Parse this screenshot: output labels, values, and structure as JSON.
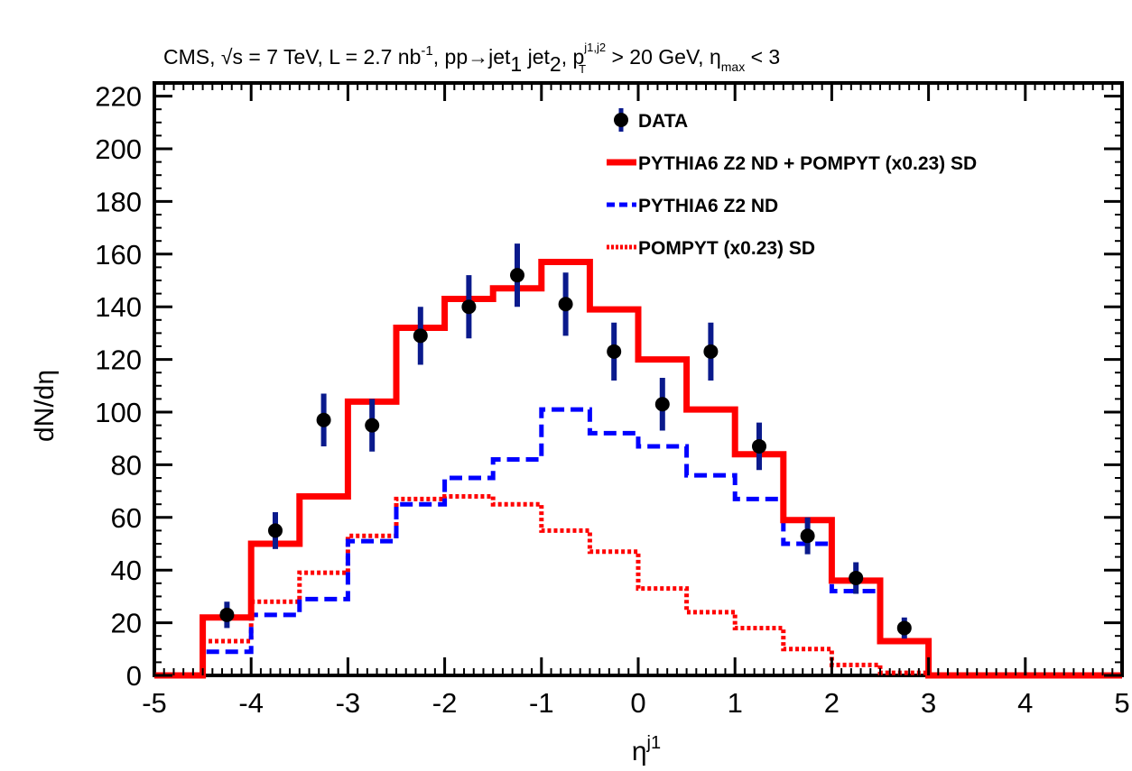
{
  "chart_data": {
    "type": "line",
    "title_parts": {
      "t1": "CMS,  ",
      "sqrt": "√s",
      "t2": " = 7 TeV,  L = 2.7 nb",
      "t2_sup": "-1",
      "t3": ",  pp→jet",
      "sub1": "1",
      "t4": " jet",
      "sub2": "2",
      "t5": ",  p",
      "pt_sup": "j1,j2",
      "pt_sub": "T",
      "t6": " > 20 GeV,  η",
      "eta_sub": "max",
      "t7": " < 3"
    },
    "ylabel": "dN/dη",
    "xlabel": "η",
    "xlabel_sup": "j1",
    "xlim": [
      -5,
      5
    ],
    "ylim": [
      0,
      225
    ],
    "xticks": [
      "-5",
      "-4",
      "-3",
      "-2",
      "-1",
      "0",
      "1",
      "2",
      "3",
      "4",
      "5"
    ],
    "yticks": [
      "0",
      "20",
      "40",
      "60",
      "80",
      "100",
      "120",
      "140",
      "160",
      "180",
      "200",
      "220"
    ],
    "bin_edges": [
      -5,
      -4.5,
      -4,
      -3.5,
      -3,
      -2.5,
      -2,
      -1.5,
      -1,
      -0.5,
      0,
      0.5,
      1,
      1.5,
      2,
      2.5,
      3,
      3.5,
      4,
      4.5,
      5
    ],
    "series": [
      {
        "name": "DATA",
        "kind": "points",
        "color": "#000000",
        "error_color": "#0a1a8c",
        "x": [
          -4.25,
          -3.75,
          -3.25,
          -2.75,
          -2.25,
          -1.75,
          -1.25,
          -0.75,
          -0.25,
          0.25,
          0.75,
          1.25,
          1.75,
          2.25,
          2.75
        ],
        "y": [
          23,
          55,
          97,
          95,
          129,
          140,
          152,
          141,
          123,
          103,
          123,
          87,
          53,
          37,
          18
        ],
        "err": [
          5,
          7,
          10,
          10,
          11,
          12,
          12,
          12,
          11,
          10,
          11,
          9,
          7,
          6,
          4
        ]
      },
      {
        "name": "PYTHIA6 Z2 ND + POMPYT (x0.23) SD",
        "kind": "hist",
        "style": "solid",
        "color": "#ff0000",
        "values": [
          0,
          22,
          50,
          68,
          104,
          132,
          143,
          147,
          157,
          139,
          120,
          101,
          84,
          59,
          36,
          13,
          0,
          0,
          0,
          0
        ]
      },
      {
        "name": "PYTHIA6 Z2 ND",
        "kind": "hist",
        "style": "dashed",
        "color": "#0000ff",
        "values": [
          0,
          9,
          23,
          29,
          51,
          65,
          75,
          82,
          101,
          92,
          87,
          76,
          67,
          50,
          32,
          13,
          0,
          0,
          0,
          0
        ]
      },
      {
        "name": "POMPYT (x0.23) SD",
        "kind": "hist",
        "style": "dotted",
        "color": "#ff0000",
        "values": [
          0,
          13,
          28,
          39,
          53,
          67,
          68,
          65,
          55,
          47,
          33,
          24,
          18,
          10,
          4,
          1,
          0,
          0,
          0,
          0
        ]
      }
    ],
    "legend_position": "top-right",
    "grid": false
  }
}
